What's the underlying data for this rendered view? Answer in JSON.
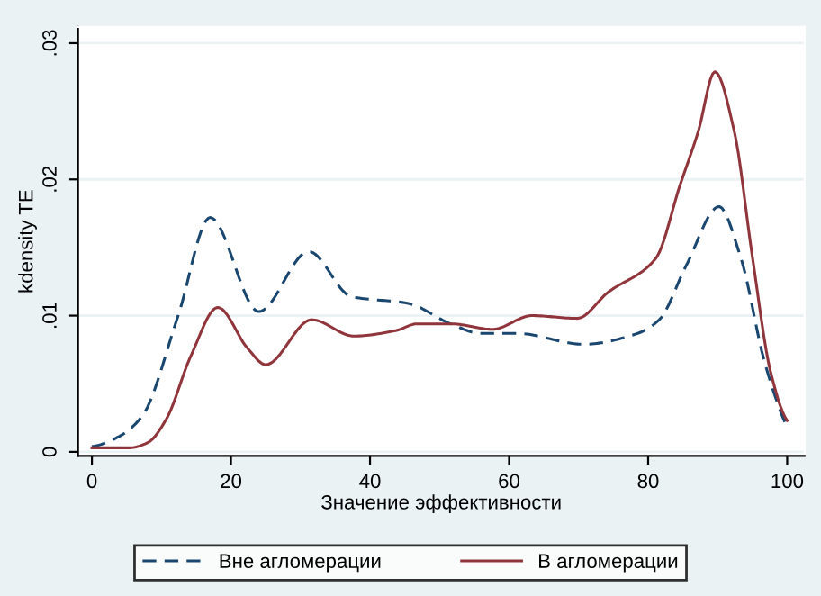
{
  "chart_data": {
    "type": "line",
    "xlabel": "Значение эффективности",
    "ylabel": "kdensity TE",
    "xlim": [
      -2,
      102.5
    ],
    "ylim": [
      -0.0003,
      0.0312
    ],
    "xticks": [
      0,
      20,
      40,
      60,
      80,
      100
    ],
    "yticks": [
      {
        "value": 0,
        "label": "0"
      },
      {
        "value": 0.01,
        "label": ".01"
      },
      {
        "value": 0.02,
        "label": ".02"
      },
      {
        "value": 0.03,
        "label": ".03"
      }
    ],
    "grid": "y",
    "legend": "bottom",
    "series": [
      {
        "name": "Вне агломерации",
        "color": "#1a476f",
        "line_style": "dashed",
        "x": [
          0,
          3.8,
          7.2,
          12.4,
          17,
          24,
          31.2,
          37.3,
          45.5,
          51.6,
          55.9,
          61.1,
          70.7,
          78.5,
          81.6,
          85.5,
          90.2,
          93.3,
          96.8,
          100
        ],
        "values": [
          0.0004,
          0.0011,
          0.0026,
          0.01,
          0.0172,
          0.0103,
          0.0147,
          0.0114,
          0.0109,
          0.0094,
          0.0087,
          0.0087,
          0.0079,
          0.0087,
          0.0097,
          0.0137,
          0.018,
          0.0143,
          0.0065,
          0.0018
        ]
      },
      {
        "name": "В агломерации",
        "color": "#90353b",
        "line_style": "solid",
        "x": [
          0,
          5.5,
          8.1,
          10.7,
          14.2,
          18.1,
          22.4,
          25,
          31.6,
          37.7,
          43.7,
          46.8,
          51.6,
          57.6,
          63.3,
          69.8,
          74.2,
          81.1,
          84.6,
          87.2,
          89.6,
          92.4,
          95,
          97.6,
          100
        ],
        "values": [
          0.0003,
          0.0003,
          0.0007,
          0.0024,
          0.007,
          0.0106,
          0.0076,
          0.0064,
          0.0097,
          0.0085,
          0.0089,
          0.0094,
          0.0094,
          0.009,
          0.01,
          0.0098,
          0.0117,
          0.0142,
          0.0196,
          0.0235,
          0.0279,
          0.0235,
          0.0143,
          0.0059,
          0.0023
        ]
      }
    ]
  }
}
